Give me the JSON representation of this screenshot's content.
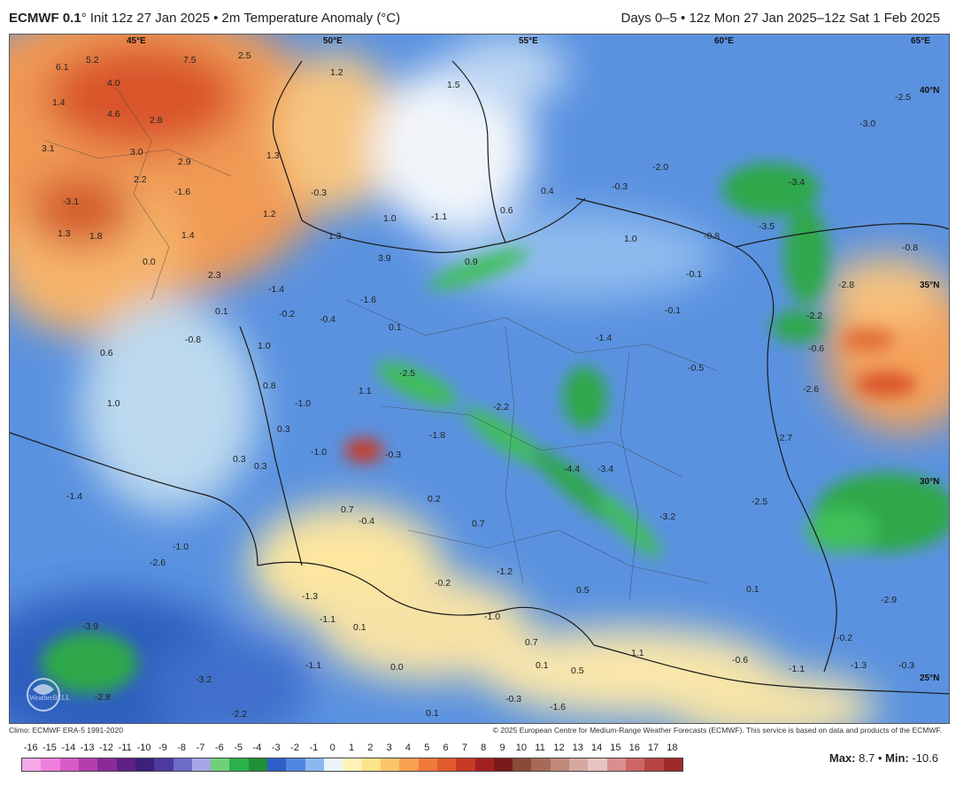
{
  "header": {
    "model": "ECMWF 0.1",
    "init_text": "° Init 12z 27 Jan 2025 • 2m Temperature Anomaly (°C)",
    "range_text": "Days 0–5 • 12z Mon 27 Jan 2025–12z Sat 1 Feb 2025"
  },
  "footer": {
    "climo": "Climo: ECMWF ERA-5 1991-2020",
    "copyright": "© 2025 European Centre for Medium-Range Weather Forecasts (ECMWF). This service is based on data and products of the ECMWF."
  },
  "stats": {
    "max_label": "Max:",
    "max_value": "8.7",
    "sep": "•",
    "min_label": "Min:",
    "min_value": "-10.6"
  },
  "watermark": "WeatherBELL",
  "scale": {
    "ticks": [
      "-16",
      "-15",
      "-14",
      "-13",
      "-12",
      "-11",
      "-10",
      "-9",
      "-8",
      "-7",
      "-6",
      "-5",
      "-4",
      "-3",
      "-2",
      "-1",
      "0",
      "1",
      "2",
      "3",
      "4",
      "5",
      "6",
      "7",
      "8",
      "9",
      "10",
      "11",
      "12",
      "13",
      "14",
      "15",
      "16",
      "17",
      "18"
    ],
    "colors": [
      "#f7a8e8",
      "#ee7fdc",
      "#d95bc8",
      "#b33fae",
      "#8a2a99",
      "#5e1f86",
      "#3e1f7c",
      "#4b3aa0",
      "#6d6bc8",
      "#a6a6e6",
      "#6fd07a",
      "#2bb24a",
      "#1f8f36",
      "#2f5fc8",
      "#4f87e0",
      "#8ab8ee",
      "#e9f4fb",
      "#fff3b8",
      "#fde38a",
      "#fdc56a",
      "#f8a050",
      "#ef7a3c",
      "#e05a2e",
      "#c93a25",
      "#a52020",
      "#7a1a1a",
      "#8a4a3a",
      "#a66a58",
      "#c08a7a",
      "#d6a8a0",
      "#e6c4bf",
      "#d98f8f",
      "#cc6666",
      "#b84444",
      "#9c2a2a"
    ]
  },
  "map": {
    "lat_labels": [
      "40°N",
      "35°N",
      "30°N",
      "25°N"
    ],
    "lon_labels": [
      "45°E",
      "50°E",
      "55°E",
      "60°E",
      "65°E"
    ],
    "values": [
      "6.1",
      "5.2",
      "7.5",
      "2.5",
      "4.0",
      "1.4",
      "4.6",
      "2.8",
      "1.2",
      "1.5",
      "-2.5",
      "-3.0",
      "3.1",
      "3.0",
      "2.9",
      "1.3",
      "2.2",
      "-1.6",
      "-0.3",
      "0.4",
      "-0.3",
      "-2.0",
      "-3.4",
      "-3.1",
      "1.2",
      "1.0",
      "-1.1",
      "0.6",
      "1.0",
      "-0.8",
      "-3.5",
      "-0.8",
      "1.3",
      "1.8",
      "1.4",
      "1.3",
      "3.9",
      "0.9",
      "0.0",
      "2.3",
      "-1.4",
      "-1.6",
      "-0.1",
      "-2.8",
      "0.1",
      "-0.2",
      "-0.4",
      "0.1",
      "-0.1",
      "-2.2",
      "-0.8",
      "1.0",
      "-1.4",
      "-0.6",
      "0.6",
      "-2.5",
      "-0.5",
      "0.8",
      "1.1",
      "-2.6",
      "1.0",
      "-1.0",
      "-2.2",
      "0.3",
      "-1.8",
      "-2.7",
      "-1.0",
      "0.3",
      "-0.3",
      "-4.4",
      "-3.4",
      "0.3",
      "0.2",
      "-2.5",
      "-1.4",
      "0.7",
      "-0.4",
      "0.7",
      "-3.2",
      "-1.0",
      "-2.6",
      "-1.2",
      "0.5",
      "-0.2",
      "0.1",
      "-1.3",
      "-1.0",
      "-2.9",
      "-3.9",
      "-1.1",
      "0.1",
      "0.7",
      "-0.2",
      "0.0",
      "0.1",
      "-1.1",
      "1.1",
      "-0.6",
      "-1.1",
      "-1.3",
      "-0.3",
      "-3.2",
      "0.5",
      "-2.8",
      "-2.2",
      "0.1",
      "-0.3",
      "-1.6"
    ]
  }
}
